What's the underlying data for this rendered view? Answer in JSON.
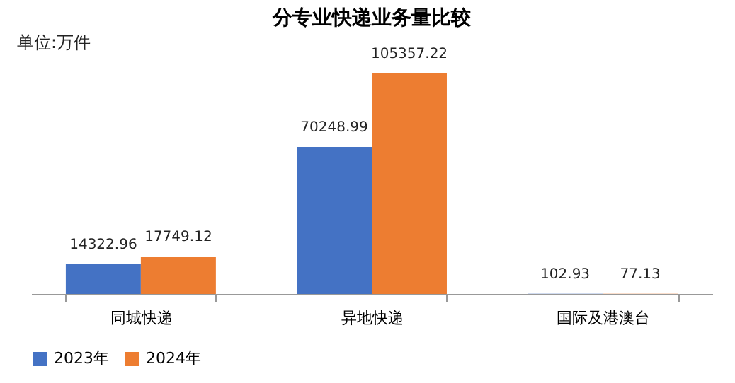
{
  "chart_data": {
    "type": "bar",
    "title": "分专业快递业务量比较",
    "annotations": [
      "单位:万件"
    ],
    "categories": [
      "同城快递",
      "异地快递",
      "国际及港澳台"
    ],
    "series": [
      {
        "name": "2023年",
        "color": "#4472c4",
        "values": [
          14322.96,
          70248.99,
          102.93
        ]
      },
      {
        "name": "2024年",
        "color": "#ed7d31",
        "values": [
          17749.12,
          105357.22,
          77.13
        ]
      }
    ],
    "data_labels": true,
    "legend": "bottom"
  }
}
